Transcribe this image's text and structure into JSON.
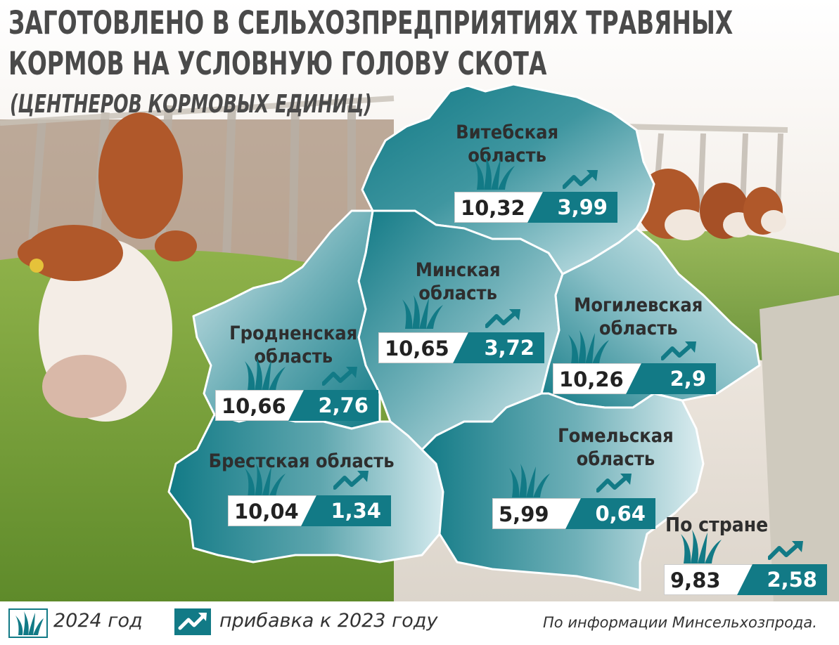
{
  "title": {
    "line1": "ЗАГОТОВЛЕНО В СЕЛЬХОЗПРЕДПРИЯТИЯХ ТРАВЯНЫХ",
    "line2": "КОРМОВ НА УСЛОВНУЮ ГОЛОВУ СКОТА",
    "subtitle": "(ЦЕНТНЕРОВ КОРМОВЫХ ЕДИНИЦ)"
  },
  "regions": [
    {
      "name_l1": "Витебская",
      "name_l2": "область",
      "v2024": "10,32",
      "increase": "3,99"
    },
    {
      "name_l1": "Минская",
      "name_l2": "область",
      "v2024": "10,65",
      "increase": "3,72"
    },
    {
      "name_l1": "Могилевская",
      "name_l2": "область",
      "v2024": "10,26",
      "increase": "2,9"
    },
    {
      "name_l1": "Гродненская",
      "name_l2": "область",
      "v2024": "10,66",
      "increase": "2,76"
    },
    {
      "name_l1": "Брестская область",
      "name_l2": "",
      "v2024": "10,04",
      "increase": "1,34"
    },
    {
      "name_l1": "Гомельская",
      "name_l2": "область",
      "v2024": "5,99",
      "increase": "0,64"
    }
  ],
  "country": {
    "label": "По стране",
    "v2024": "9,83",
    "increase": "2,58"
  },
  "legend": {
    "grass_label": "2024 год",
    "arrow_label": "прибавка к 2023 году",
    "grass_icon": "grass-icon",
    "arrow_icon": "trend-up-icon"
  },
  "source": "По информации Минсельхозпрода.",
  "colors": {
    "teal": "#127a86",
    "teal_light": "#b9dde2",
    "text": "#4a4a4a"
  }
}
